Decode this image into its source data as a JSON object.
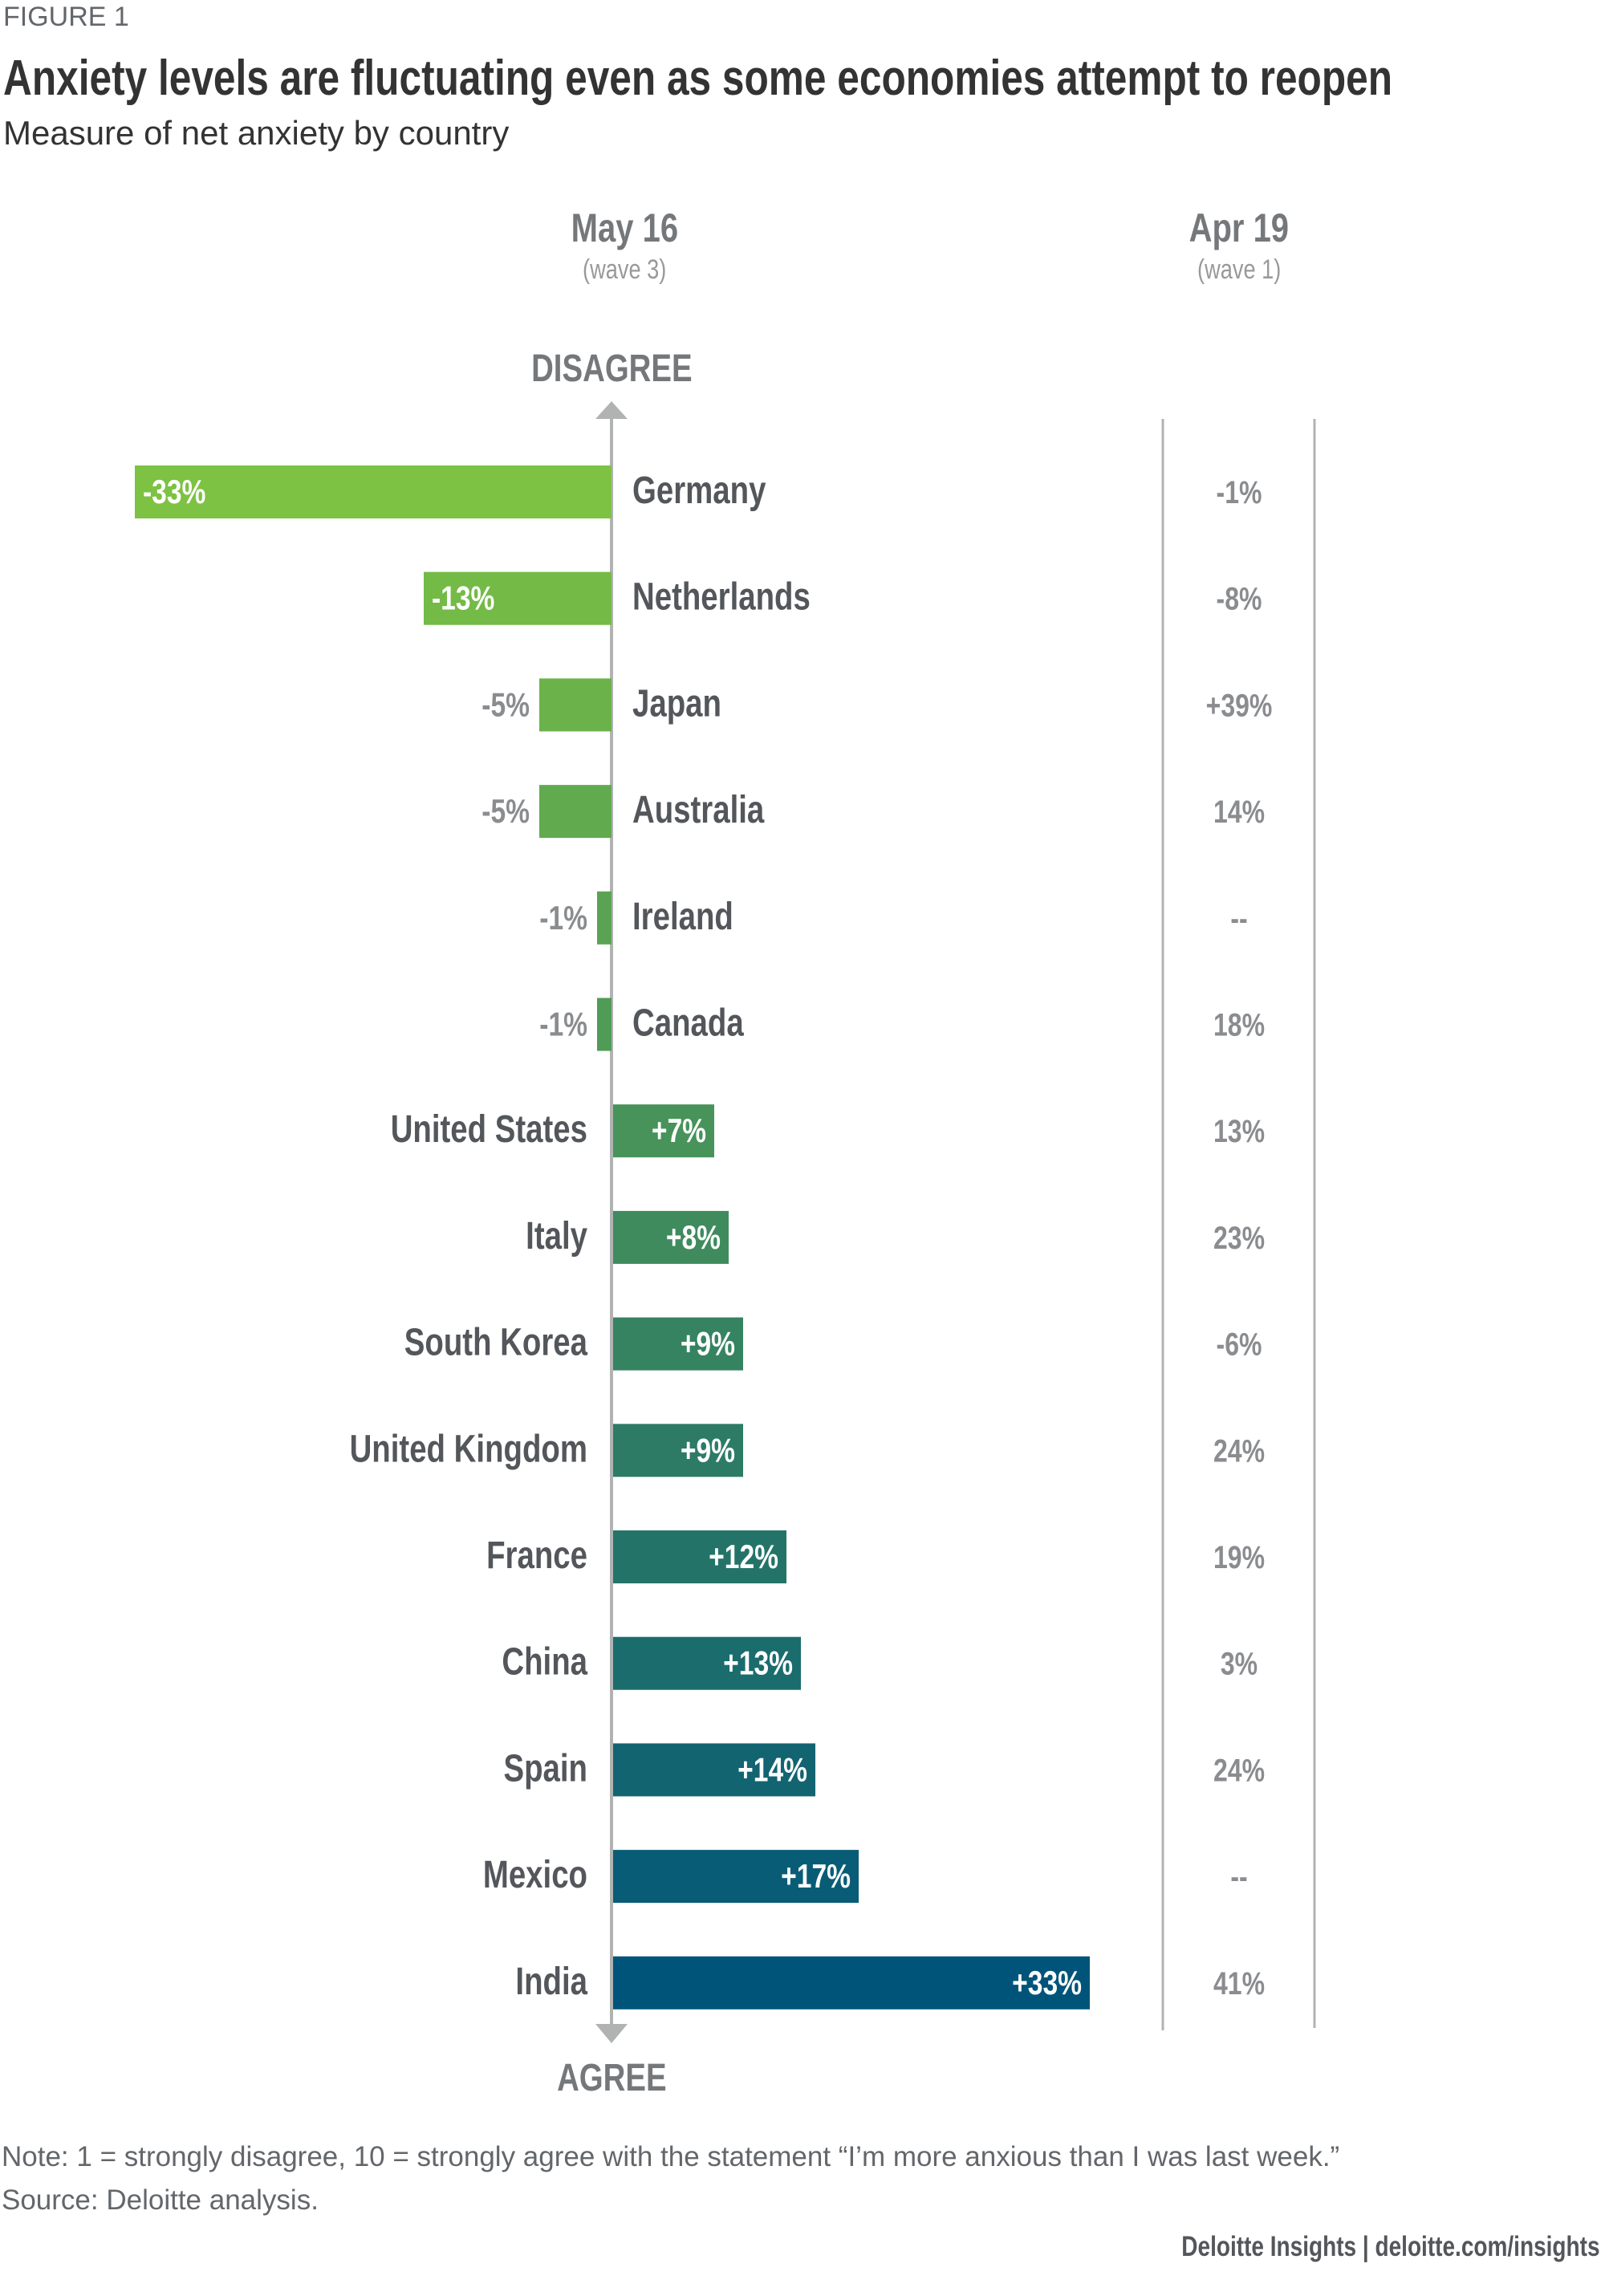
{
  "figure_label": "FIGURE 1",
  "chart_data": {
    "type": "bar",
    "title": "Anxiety levels are fluctuating even as some economies attempt to reopen",
    "subtitle": "Measure of net anxiety by country",
    "columns": [
      {
        "date": "May 16",
        "wave": "(wave 3)"
      },
      {
        "date": "Apr 19",
        "wave": "(wave 1)"
      }
    ],
    "axis_top_label": "DISAGREE",
    "axis_bottom_label": "AGREE",
    "categories": [
      "Germany",
      "Netherlands",
      "Japan",
      "Australia",
      "Ireland",
      "Canada",
      "United States",
      "Italy",
      "South Korea",
      "United Kingdom",
      "France",
      "China",
      "Spain",
      "Mexico",
      "India"
    ],
    "series": [
      {
        "name": "May 16 (wave 3)",
        "values": [
          -33,
          -13,
          -5,
          -5,
          -1,
          -1,
          7,
          8,
          9,
          9,
          12,
          13,
          14,
          17,
          33
        ],
        "labels": [
          "-33%",
          "-13%",
          "-5%",
          "-5%",
          "-1%",
          "-1%",
          "+7%",
          "+8%",
          "+9%",
          "+9%",
          "+12%",
          "+13%",
          "+14%",
          "+17%",
          "+33%"
        ]
      },
      {
        "name": "Apr 19 (wave 1)",
        "values": [
          -1,
          -8,
          39,
          14,
          null,
          18,
          13,
          23,
          -6,
          24,
          19,
          3,
          24,
          null,
          41
        ],
        "labels": [
          "-1%",
          "-8%",
          "+39%",
          "14%",
          "--",
          "18%",
          "13%",
          "23%",
          "-6%",
          "24%",
          "19%",
          "3%",
          "24%",
          "--",
          "41%"
        ]
      }
    ],
    "colors": {
      "start": "#7dc242",
      "end": "#005479",
      "axis": "#b1b3b3"
    }
  },
  "note": "Note: 1 = strongly disagree, 10 = strongly agree with the statement “I’m more anxious than I was last week.”",
  "source": "Source: Deloitte analysis.",
  "footer": "Deloitte Insights | deloitte.com/insights"
}
